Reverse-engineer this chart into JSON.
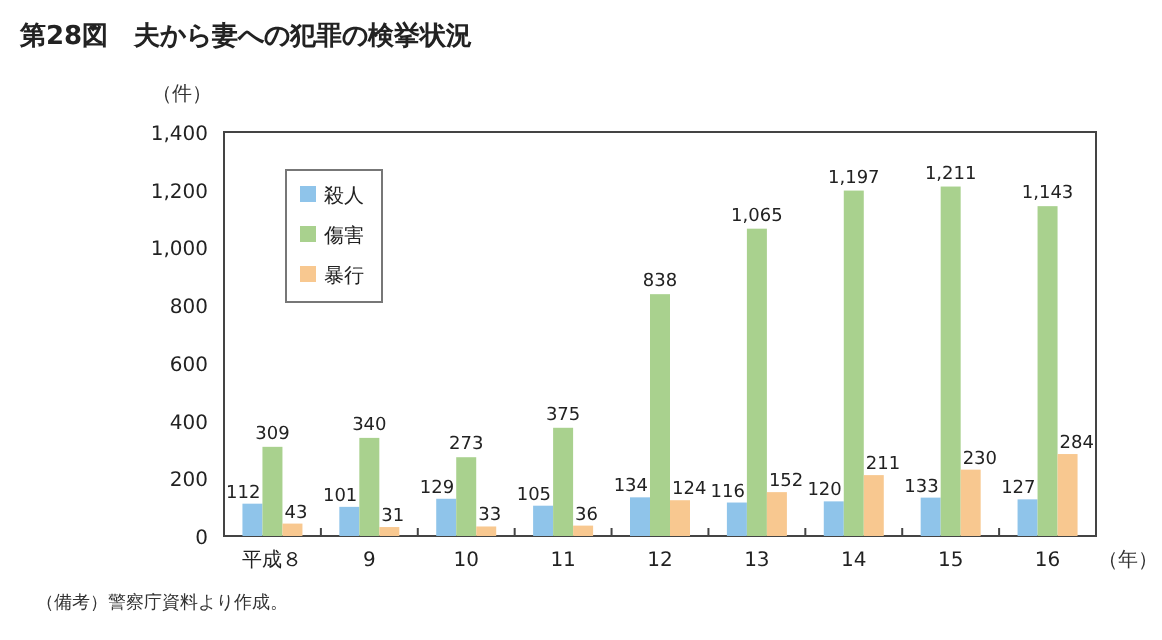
{
  "chart_data": {
    "type": "bar",
    "title": "第28図　夫から妻への犯罪の検挙状況",
    "ylabel": "（件）",
    "xlabel": "（年）",
    "categories": [
      "平成８",
      "9",
      "10",
      "11",
      "12",
      "13",
      "14",
      "15",
      "16"
    ],
    "series": [
      {
        "name": "殺人",
        "color": "#8fc4ea",
        "values": [
          112,
          101,
          129,
          105,
          134,
          116,
          120,
          133,
          127
        ],
        "value_labels": [
          "112",
          "101",
          "129",
          "105",
          "134",
          "116",
          "120",
          "133",
          "127"
        ]
      },
      {
        "name": "傷害",
        "color": "#a9d18e",
        "values": [
          309,
          340,
          273,
          375,
          838,
          1065,
          1197,
          1211,
          1143
        ],
        "value_labels": [
          "309",
          "340",
          "273",
          "375",
          "838",
          "1,065",
          "1,197",
          "1,211",
          "1,143"
        ]
      },
      {
        "name": "暴行",
        "color": "#f8c890",
        "values": [
          43,
          31,
          33,
          36,
          124,
          152,
          211,
          230,
          284
        ],
        "value_labels": [
          "43",
          "31",
          "33",
          "36",
          "124",
          "152",
          "211",
          "230",
          "284"
        ]
      }
    ],
    "ylim": [
      0,
      1400
    ],
    "yticks": [
      0,
      {
        "value": 200,
        "label": "200"
      },
      {
        "value": 400,
        "label": "400"
      },
      {
        "value": 600,
        "label": "600"
      },
      {
        "value": 800,
        "label": "800"
      },
      {
        "value": 1000,
        "label": "1,000"
      },
      {
        "value": 1200,
        "label": "1,200"
      },
      {
        "value": 1400,
        "label": "1,400"
      }
    ],
    "legend": "top left",
    "grid": false,
    "annotations": [
      "（備考）警察庁資料より作成。"
    ]
  }
}
